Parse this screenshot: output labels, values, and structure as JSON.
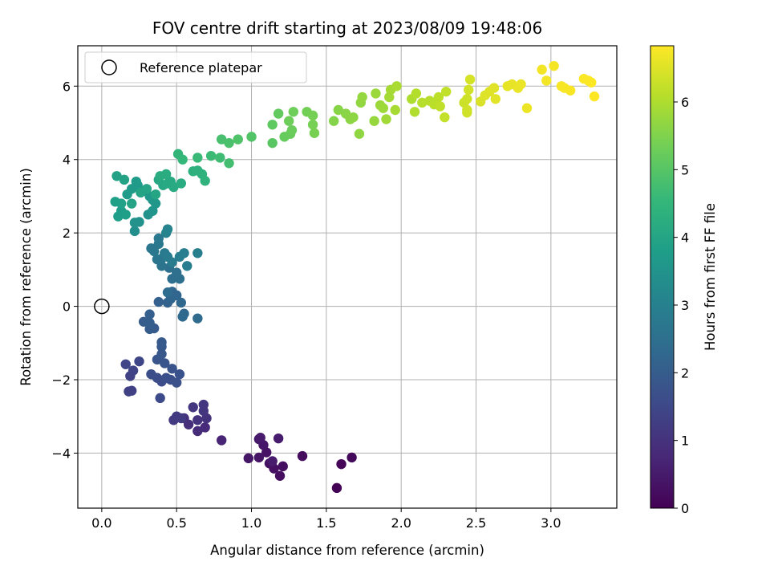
{
  "chart_data": {
    "type": "scatter",
    "title": "FOV centre drift starting at 2023/08/09 19:48:06",
    "xlabel": "Angular distance from reference (arcmin)",
    "ylabel": "Rotation from reference (arcmin)",
    "xlim": [
      -0.16,
      3.44
    ],
    "ylim": [
      -5.5,
      7.1
    ],
    "xticks": [
      0.0,
      0.5,
      1.0,
      1.5,
      2.0,
      2.5,
      3.0
    ],
    "xtick_labels": [
      "0.0",
      "0.5",
      "1.0",
      "1.5",
      "2.0",
      "2.5",
      "3.0"
    ],
    "yticks": [
      -4,
      -2,
      0,
      2,
      4,
      6
    ],
    "ytick_labels": [
      "−4",
      "−2",
      "0",
      "2",
      "4",
      "6"
    ],
    "grid": true,
    "legend": {
      "position": "top-left",
      "entries": [
        "Reference platepar"
      ]
    },
    "reference_point": {
      "x": 0.0,
      "y": 0.0
    },
    "colorbar": {
      "label": "Hours from first FF file",
      "colormap": "viridis",
      "range": [
        0,
        6.83
      ],
      "ticks": [
        0,
        1,
        2,
        3,
        4,
        5,
        6
      ],
      "tick_labels": [
        "0",
        "1",
        "2",
        "3",
        "4",
        "5",
        "6"
      ]
    },
    "colormap_stops": [
      "#440154",
      "#482878",
      "#3e4989",
      "#31688e",
      "#26828e",
      "#1f9e89",
      "#35b779",
      "#6ece58",
      "#b5de2b",
      "#fde725"
    ],
    "points": [
      [
        1.57,
        -4.95,
        0.05
      ],
      [
        1.6,
        -4.3,
        0.1
      ],
      [
        1.67,
        -4.12,
        0.15
      ],
      [
        1.34,
        -4.08,
        0.2
      ],
      [
        1.19,
        -4.62,
        0.25
      ],
      [
        1.21,
        -4.36,
        0.28
      ],
      [
        1.15,
        -4.42,
        0.3
      ],
      [
        1.12,
        -4.28,
        0.33
      ],
      [
        1.1,
        -3.98,
        0.35
      ],
      [
        1.05,
        -4.12,
        0.38
      ],
      [
        0.98,
        -4.14,
        0.4
      ],
      [
        1.08,
        -3.78,
        0.43
      ],
      [
        1.05,
        -3.62,
        0.45
      ],
      [
        1.06,
        -3.58,
        0.48
      ],
      [
        1.18,
        -3.6,
        0.5
      ],
      [
        1.14,
        -4.22,
        0.52
      ],
      [
        0.8,
        -3.65,
        0.7
      ],
      [
        0.69,
        -3.3,
        0.8
      ],
      [
        0.64,
        -3.4,
        0.85
      ],
      [
        0.58,
        -3.22,
        0.9
      ],
      [
        0.55,
        -3.05,
        0.95
      ],
      [
        0.7,
        -3.05,
        1.0
      ],
      [
        0.64,
        -3.1,
        1.02
      ],
      [
        0.68,
        -2.85,
        1.05
      ],
      [
        0.68,
        -2.68,
        1.08
      ],
      [
        0.61,
        -2.75,
        1.1
      ],
      [
        0.48,
        -3.1,
        1.15
      ],
      [
        0.5,
        -3.0,
        1.18
      ],
      [
        0.53,
        -3.05,
        1.2
      ],
      [
        0.2,
        -2.3,
        1.3
      ],
      [
        0.18,
        -2.32,
        1.33
      ],
      [
        0.19,
        -1.9,
        1.36
      ],
      [
        0.21,
        -1.75,
        1.4
      ],
      [
        0.16,
        -1.58,
        1.42
      ],
      [
        0.25,
        -1.5,
        1.45
      ],
      [
        0.39,
        -2.5,
        1.55
      ],
      [
        0.4,
        -2.05,
        1.6
      ],
      [
        0.37,
        -1.95,
        1.62
      ],
      [
        0.33,
        -1.85,
        1.65
      ],
      [
        0.43,
        -1.95,
        1.68
      ],
      [
        0.46,
        -2.0,
        1.7
      ],
      [
        0.5,
        -2.08,
        1.72
      ],
      [
        0.52,
        -1.85,
        1.75
      ],
      [
        0.47,
        -1.7,
        1.78
      ],
      [
        0.42,
        -1.55,
        1.8
      ],
      [
        0.37,
        -1.45,
        1.82
      ],
      [
        0.4,
        -1.3,
        1.85
      ],
      [
        0.4,
        -1.1,
        1.88
      ],
      [
        0.4,
        -0.98,
        1.9
      ],
      [
        0.35,
        -0.6,
        1.95
      ],
      [
        0.32,
        -0.62,
        1.98
      ],
      [
        0.28,
        -0.42,
        2.0
      ],
      [
        0.32,
        -0.45,
        2.02
      ],
      [
        0.32,
        -0.22,
        2.05
      ],
      [
        0.38,
        0.12,
        2.1
      ],
      [
        0.44,
        0.1,
        2.15
      ],
      [
        0.46,
        0.2,
        2.2
      ],
      [
        0.47,
        0.4,
        2.22
      ],
      [
        0.5,
        0.3,
        2.25
      ],
      [
        0.53,
        0.1,
        2.28
      ],
      [
        0.55,
        -0.2,
        2.3
      ],
      [
        0.54,
        -0.28,
        2.32
      ],
      [
        0.64,
        -0.33,
        2.35
      ],
      [
        0.44,
        0.38,
        2.4
      ],
      [
        0.47,
        0.75,
        2.45
      ],
      [
        0.52,
        0.75,
        2.48
      ],
      [
        0.5,
        0.92,
        2.5
      ],
      [
        0.45,
        1.05,
        2.55
      ],
      [
        0.4,
        1.1,
        2.6
      ],
      [
        0.4,
        1.3,
        2.65
      ],
      [
        0.37,
        1.28,
        2.68
      ],
      [
        0.35,
        1.5,
        2.7
      ],
      [
        0.33,
        1.58,
        2.72
      ],
      [
        0.38,
        1.7,
        2.75
      ],
      [
        0.38,
        1.85,
        2.78
      ],
      [
        0.42,
        1.45,
        2.8
      ],
      [
        0.44,
        1.35,
        2.82
      ],
      [
        0.47,
        1.2,
        2.85
      ],
      [
        0.52,
        1.35,
        2.88
      ],
      [
        0.55,
        1.45,
        2.9
      ],
      [
        0.57,
        1.1,
        2.92
      ],
      [
        0.64,
        1.45,
        2.95
      ],
      [
        0.43,
        2.0,
        3.05
      ],
      [
        0.44,
        2.1,
        3.08
      ],
      [
        0.22,
        2.05,
        3.4
      ],
      [
        0.25,
        2.3,
        3.45
      ],
      [
        0.22,
        2.28,
        3.48
      ],
      [
        0.31,
        2.5,
        3.5
      ],
      [
        0.34,
        2.6,
        3.55
      ],
      [
        0.36,
        2.8,
        3.58
      ],
      [
        0.34,
        2.9,
        3.6
      ],
      [
        0.32,
        3.0,
        3.62
      ],
      [
        0.28,
        3.15,
        3.65
      ],
      [
        0.24,
        3.3,
        3.68
      ],
      [
        0.23,
        3.4,
        3.7
      ],
      [
        0.2,
        3.2,
        3.72
      ],
      [
        0.17,
        3.05,
        3.75
      ],
      [
        0.13,
        2.6,
        3.78
      ],
      [
        0.11,
        2.45,
        3.8
      ],
      [
        0.16,
        2.5,
        3.82
      ],
      [
        0.09,
        2.85,
        3.85
      ],
      [
        0.13,
        2.8,
        3.88
      ],
      [
        0.1,
        3.55,
        3.9
      ],
      [
        0.15,
        3.45,
        3.92
      ],
      [
        0.2,
        2.8,
        3.95
      ],
      [
        0.26,
        3.1,
        3.98
      ],
      [
        0.3,
        3.2,
        4.0
      ],
      [
        0.36,
        3.05,
        4.02
      ],
      [
        0.38,
        3.45,
        4.05
      ],
      [
        0.41,
        3.3,
        4.08
      ],
      [
        0.44,
        3.35,
        4.1
      ],
      [
        0.46,
        3.4,
        4.12
      ],
      [
        0.48,
        3.25,
        4.15
      ],
      [
        0.53,
        3.35,
        4.18
      ],
      [
        0.39,
        3.55,
        4.2
      ],
      [
        0.43,
        3.6,
        4.22
      ],
      [
        0.61,
        3.68,
        4.3
      ],
      [
        0.64,
        3.7,
        4.33
      ],
      [
        0.67,
        3.6,
        4.36
      ],
      [
        0.69,
        3.42,
        4.4
      ],
      [
        0.51,
        4.15,
        4.5
      ],
      [
        0.54,
        4.0,
        4.55
      ],
      [
        0.64,
        4.05,
        4.6
      ],
      [
        0.73,
        4.1,
        4.65
      ],
      [
        0.79,
        4.05,
        4.7
      ],
      [
        0.85,
        3.9,
        4.75
      ],
      [
        0.8,
        4.55,
        4.8
      ],
      [
        0.85,
        4.45,
        4.85
      ],
      [
        0.91,
        4.55,
        4.9
      ],
      [
        1.0,
        4.62,
        4.95
      ],
      [
        1.14,
        4.45,
        5.05
      ],
      [
        1.14,
        4.95,
        5.1
      ],
      [
        1.18,
        5.25,
        5.15
      ],
      [
        1.22,
        4.62,
        5.2
      ],
      [
        1.26,
        4.7,
        5.22
      ],
      [
        1.27,
        4.8,
        5.25
      ],
      [
        1.25,
        5.05,
        5.28
      ],
      [
        1.28,
        5.3,
        5.3
      ],
      [
        1.37,
        5.3,
        5.35
      ],
      [
        1.41,
        5.2,
        5.38
      ],
      [
        1.41,
        4.95,
        5.4
      ],
      [
        1.42,
        4.72,
        5.42
      ],
      [
        1.55,
        5.05,
        5.55
      ],
      [
        1.58,
        5.35,
        5.58
      ],
      [
        1.63,
        5.25,
        5.6
      ],
      [
        1.66,
        5.1,
        5.62
      ],
      [
        1.68,
        5.15,
        5.65
      ],
      [
        1.72,
        4.7,
        5.68
      ],
      [
        1.73,
        5.55,
        5.7
      ],
      [
        1.74,
        5.7,
        5.72
      ],
      [
        1.82,
        5.05,
        5.75
      ],
      [
        1.83,
        5.8,
        5.78
      ],
      [
        1.86,
        5.48,
        5.8
      ],
      [
        1.88,
        5.4,
        5.82
      ],
      [
        1.9,
        5.1,
        5.85
      ],
      [
        1.92,
        5.7,
        5.88
      ],
      [
        1.93,
        5.9,
        5.9
      ],
      [
        1.96,
        5.35,
        5.92
      ],
      [
        1.97,
        6.0,
        5.95
      ],
      [
        2.07,
        5.65,
        6.0
      ],
      [
        2.09,
        5.3,
        6.02
      ],
      [
        2.1,
        5.8,
        6.05
      ],
      [
        2.14,
        5.55,
        6.08
      ],
      [
        2.19,
        5.6,
        6.1
      ],
      [
        2.22,
        5.5,
        6.12
      ],
      [
        2.25,
        5.7,
        6.15
      ],
      [
        2.26,
        5.45,
        6.18
      ],
      [
        2.3,
        5.85,
        6.2
      ],
      [
        2.29,
        5.15,
        6.22
      ],
      [
        2.42,
        5.55,
        6.3
      ],
      [
        2.44,
        5.65,
        6.32
      ],
      [
        2.44,
        5.35,
        6.34
      ],
      [
        2.44,
        5.28,
        6.35
      ],
      [
        2.45,
        5.9,
        6.38
      ],
      [
        2.46,
        6.18,
        6.4
      ],
      [
        2.53,
        5.58,
        6.45
      ],
      [
        2.56,
        5.75,
        6.48
      ],
      [
        2.59,
        5.85,
        6.5
      ],
      [
        2.62,
        5.95,
        6.52
      ],
      [
        2.63,
        5.65,
        6.55
      ],
      [
        2.71,
        6.0,
        6.58
      ],
      [
        2.74,
        6.05,
        6.6
      ],
      [
        2.78,
        5.95,
        6.62
      ],
      [
        2.8,
        6.05,
        6.63
      ],
      [
        2.84,
        5.4,
        6.65
      ],
      [
        2.94,
        6.45,
        6.7
      ],
      [
        2.97,
        6.15,
        6.72
      ],
      [
        3.02,
        6.55,
        6.74
      ],
      [
        3.07,
        6.0,
        6.76
      ],
      [
        3.09,
        5.95,
        6.77
      ],
      [
        3.13,
        5.88,
        6.78
      ],
      [
        3.22,
        6.2,
        6.8
      ],
      [
        3.25,
        6.15,
        6.81
      ],
      [
        3.27,
        6.1,
        6.82
      ],
      [
        3.29,
        5.72,
        6.83
      ]
    ]
  }
}
